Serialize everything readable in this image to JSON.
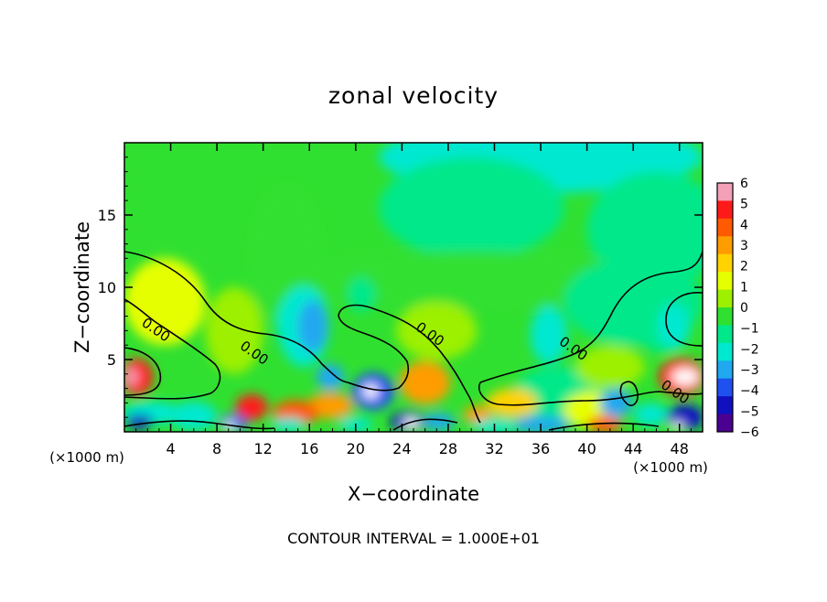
{
  "chart_data": {
    "type": "heatmap",
    "title": "zonal velocity",
    "xlabel": "X−coordinate",
    "ylabel": "Z−coordinate",
    "x_unit_left": "(×1000 m)",
    "x_unit_right": "(×1000 m)",
    "footer": "CONTOUR INTERVAL = 1.000E+01",
    "xlim": [
      0,
      50
    ],
    "ylim": [
      0,
      20
    ],
    "x_ticks": [
      4,
      8,
      12,
      16,
      20,
      24,
      28,
      32,
      36,
      40,
      44,
      48
    ],
    "x_tick_labels": [
      "4",
      "8",
      "12",
      "16",
      "20",
      "24",
      "28",
      "32",
      "36",
      "40",
      "44",
      "48"
    ],
    "y_ticks": [
      5,
      10,
      15
    ],
    "y_tick_labels": [
      "5",
      "10",
      "15"
    ],
    "colorbar": {
      "range": [
        -6,
        6
      ],
      "ticks": [
        6,
        5,
        4,
        3,
        2,
        1,
        0,
        -1,
        -2,
        -3,
        -4,
        -5,
        -6
      ],
      "tick_labels": [
        "6",
        "5",
        "4",
        "3",
        "2",
        "1",
        "0",
        "−1",
        "−2",
        "−3",
        "−4",
        "−5",
        "−6"
      ],
      "colors": [
        "#f4a0b8",
        "#ff1a1a",
        "#ff5a00",
        "#ff9c00",
        "#ffd200",
        "#e6ff00",
        "#9cf000",
        "#30e030",
        "#00e88a",
        "#00e8d0",
        "#20a8f0",
        "#1f50f0",
        "#1010c0",
        "#4a0090"
      ]
    },
    "contour_labels": [
      {
        "text": "0.00",
        "x": 2.5,
        "z": 6.8
      },
      {
        "text": "0.00",
        "x": 11.0,
        "z": 5.2
      },
      {
        "text": "0.00",
        "x": 26.2,
        "z": 6.5
      },
      {
        "text": "0.00",
        "x": 38.6,
        "z": 5.5
      },
      {
        "text": "0.00",
        "x": 47.4,
        "z": 2.5
      }
    ],
    "fill": {
      "background": "#30e030",
      "blobs": [
        {
          "x": 36,
          "z": 19,
          "rx": 14,
          "rz": 2.5,
          "v": -1.8
        },
        {
          "x": 30,
          "z": 15.5,
          "rx": 8,
          "rz": 3.5,
          "v": -1.3
        },
        {
          "x": 46,
          "z": 14,
          "rx": 6,
          "rz": 4,
          "v": -1.0
        },
        {
          "x": 30,
          "z": 10.5,
          "rx": 16,
          "rz": 2,
          "v": -0.7
        },
        {
          "x": 44,
          "z": 9,
          "rx": 6,
          "rz": 3,
          "v": -1.0
        },
        {
          "x": 14,
          "z": 12,
          "rx": 3,
          "rz": 5,
          "v": -0.5
        },
        {
          "x": 3.5,
          "z": 9,
          "rx": 3.5,
          "rz": 3,
          "v": 1.0
        },
        {
          "x": 9.5,
          "z": 7,
          "rx": 2.5,
          "rz": 3,
          "v": 0.6
        },
        {
          "x": 14.5,
          "z": 7.5,
          "rx": 1.4,
          "rz": 2,
          "v": -1.5
        },
        {
          "x": 15.5,
          "z": 7.3,
          "rx": 2.2,
          "rz": 2.8,
          "v": -2.0
        },
        {
          "x": 16.3,
          "z": 7.3,
          "rx": 1.3,
          "rz": 1.8,
          "v": -3.0
        },
        {
          "x": 20.5,
          "z": 9.5,
          "rx": 1.2,
          "rz": 1.2,
          "v": -1.6
        },
        {
          "x": 27,
          "z": 7,
          "rx": 3.5,
          "rz": 2,
          "v": 0.8
        },
        {
          "x": 36.7,
          "z": 6.7,
          "rx": 1.6,
          "rz": 2,
          "v": -1.8
        },
        {
          "x": 37.5,
          "z": 2.5,
          "rx": 4,
          "rz": 2,
          "v": -1.0
        },
        {
          "x": 42,
          "z": 4.5,
          "rx": 3,
          "rz": 1.5,
          "v": 0.5
        },
        {
          "x": 46.5,
          "z": 7.5,
          "rx": 2.5,
          "rz": 2,
          "v": -1.4
        },
        {
          "x": 47.5,
          "z": 7.3,
          "rx": 1.4,
          "rz": 1.6,
          "v": -2.0
        },
        {
          "x": 21.5,
          "z": 2.8,
          "rx": 1.8,
          "rz": 1.3,
          "v": -4.2
        },
        {
          "x": 21.3,
          "z": 2.8,
          "rx": 0.7,
          "rz": 0.5,
          "v": 6.5
        },
        {
          "x": 17.8,
          "z": 3.8,
          "rx": 1.2,
          "rz": 0.9,
          "v": -3.2
        },
        {
          "x": 17.8,
          "z": 1.8,
          "rx": 2,
          "rz": 0.9,
          "v": 3.0
        },
        {
          "x": 14.8,
          "z": 1.3,
          "rx": 2,
          "rz": 0.9,
          "v": 4.0
        },
        {
          "x": 11,
          "z": 1.7,
          "rx": 1.4,
          "rz": 0.9,
          "v": 4.5
        },
        {
          "x": 9.4,
          "z": 0.6,
          "rx": 1.2,
          "rz": 0.6,
          "v": -4.0
        },
        {
          "x": 9.1,
          "z": 0.4,
          "rx": 0.5,
          "rz": 0.35,
          "v": 6.5
        },
        {
          "x": 1.1,
          "z": 3.8,
          "rx": 1.4,
          "rz": 1.3,
          "v": 5.0
        },
        {
          "x": 0.6,
          "z": 3.8,
          "rx": 0.6,
          "rz": 0.6,
          "v": 6.0
        },
        {
          "x": 2.4,
          "z": 1.3,
          "rx": 2.6,
          "rz": 0.8,
          "v": -2.5
        },
        {
          "x": 1.3,
          "z": 0.7,
          "rx": 1.2,
          "rz": 0.5,
          "v": -4.5
        },
        {
          "x": 6,
          "z": 1.1,
          "rx": 2,
          "rz": 1.0,
          "v": -1.8
        },
        {
          "x": 26,
          "z": 3.4,
          "rx": 2.2,
          "rz": 1.5,
          "v": 3.2
        },
        {
          "x": 24.5,
          "z": 0.7,
          "rx": 1.5,
          "rz": 0.7,
          "v": -4.5
        },
        {
          "x": 24.8,
          "z": 0.6,
          "rx": 0.7,
          "rz": 0.4,
          "v": 6.5
        },
        {
          "x": 27.2,
          "z": 0.7,
          "rx": 1.4,
          "rz": 0.6,
          "v": -3.3
        },
        {
          "x": 30.5,
          "z": 1.2,
          "rx": 1.2,
          "rz": 0.6,
          "v": 3.0
        },
        {
          "x": 33.5,
          "z": 2.0,
          "rx": 2.2,
          "rz": 1.0,
          "v": 2.0
        },
        {
          "x": 36,
          "z": 0.5,
          "rx": 2.5,
          "rz": 0.6,
          "v": -3.0
        },
        {
          "x": 40.5,
          "z": 1.5,
          "rx": 2.5,
          "rz": 1.3,
          "v": 1.4
        },
        {
          "x": 42.5,
          "z": 2.0,
          "rx": 1.4,
          "rz": 1.0,
          "v": -3.0
        },
        {
          "x": 41.5,
          "z": 0.5,
          "rx": 1.5,
          "rz": 0.6,
          "v": 4.0
        },
        {
          "x": 45.5,
          "z": 1.2,
          "rx": 1.5,
          "rz": 0.8,
          "v": -2.5
        },
        {
          "x": 48.2,
          "z": 3.8,
          "rx": 2.0,
          "rz": 1.3,
          "v": 4.8
        },
        {
          "x": 48.5,
          "z": 3.8,
          "rx": 1.2,
          "rz": 0.6,
          "v": 6.5
        },
        {
          "x": 48.5,
          "z": 1.0,
          "rx": 1.6,
          "rz": 0.9,
          "v": -5.0
        },
        {
          "x": 47.8,
          "z": 0.4,
          "rx": 0.6,
          "rz": 0.3,
          "v": 6.5
        },
        {
          "x": 14.2,
          "z": 0.5,
          "rx": 1.5,
          "rz": 0.5,
          "v": -2.5
        },
        {
          "x": 20,
          "z": 0.5,
          "rx": 1.5,
          "rz": 0.5,
          "v": -2.5
        },
        {
          "x": 32,
          "z": 0.4,
          "rx": 2,
          "rz": 0.5,
          "v": -2.0
        }
      ]
    }
  }
}
